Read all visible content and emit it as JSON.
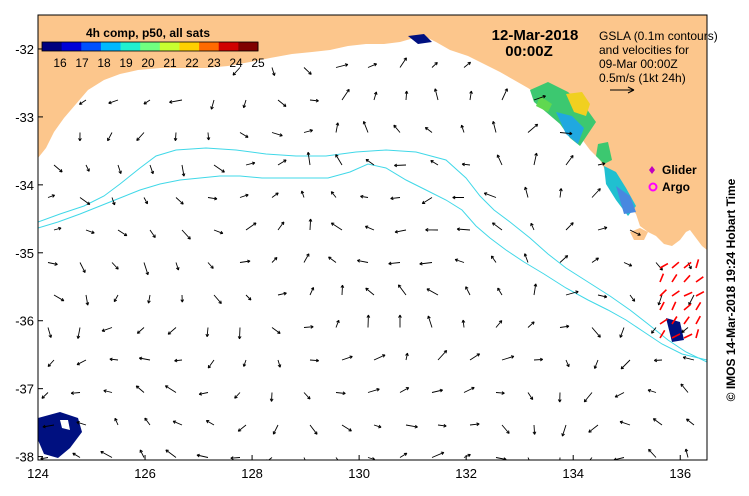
{
  "title": {
    "date": "12-Mar-2018",
    "time": "00:00Z"
  },
  "colorbar": {
    "title": "4h comp, p50, all sats",
    "ticks": [
      "16",
      "17",
      "18",
      "19",
      "20",
      "21",
      "22",
      "23",
      "24",
      "25"
    ],
    "colors": [
      "#00007f",
      "#0000d8",
      "#0050ff",
      "#00b8ff",
      "#20f0d0",
      "#70ff80",
      "#c8ff30",
      "#ffd000",
      "#ff6a00",
      "#d00000",
      "#7f0000"
    ]
  },
  "legend_text": {
    "line1": "GSLA (0.1m contours)",
    "line2": "and velocities for",
    "line3": "09-Mar 00:00Z",
    "line4": "0.5m/s (1kt 24h)"
  },
  "markers": {
    "glider": "Glider",
    "argo": "Argo"
  },
  "credit": "©  IMOS 14-Mar-2018 19:24 Hobart Time",
  "axes": {
    "x_ticks": [
      "124",
      "126",
      "128",
      "130",
      "132",
      "134",
      "136"
    ],
    "y_ticks": [
      "-32",
      "-33",
      "-34",
      "-35",
      "-36",
      "-37",
      "-38"
    ],
    "lon_range": [
      124,
      136.5
    ],
    "lat_range": [
      -31.5,
      -38.05
    ]
  },
  "style": {
    "land": "#fcc68c",
    "contour": "#40d8e8",
    "arrow": "#000000",
    "glider": "#c000c0",
    "argo": "#ff00ff",
    "highlight_arrow": "#ff0000"
  }
}
